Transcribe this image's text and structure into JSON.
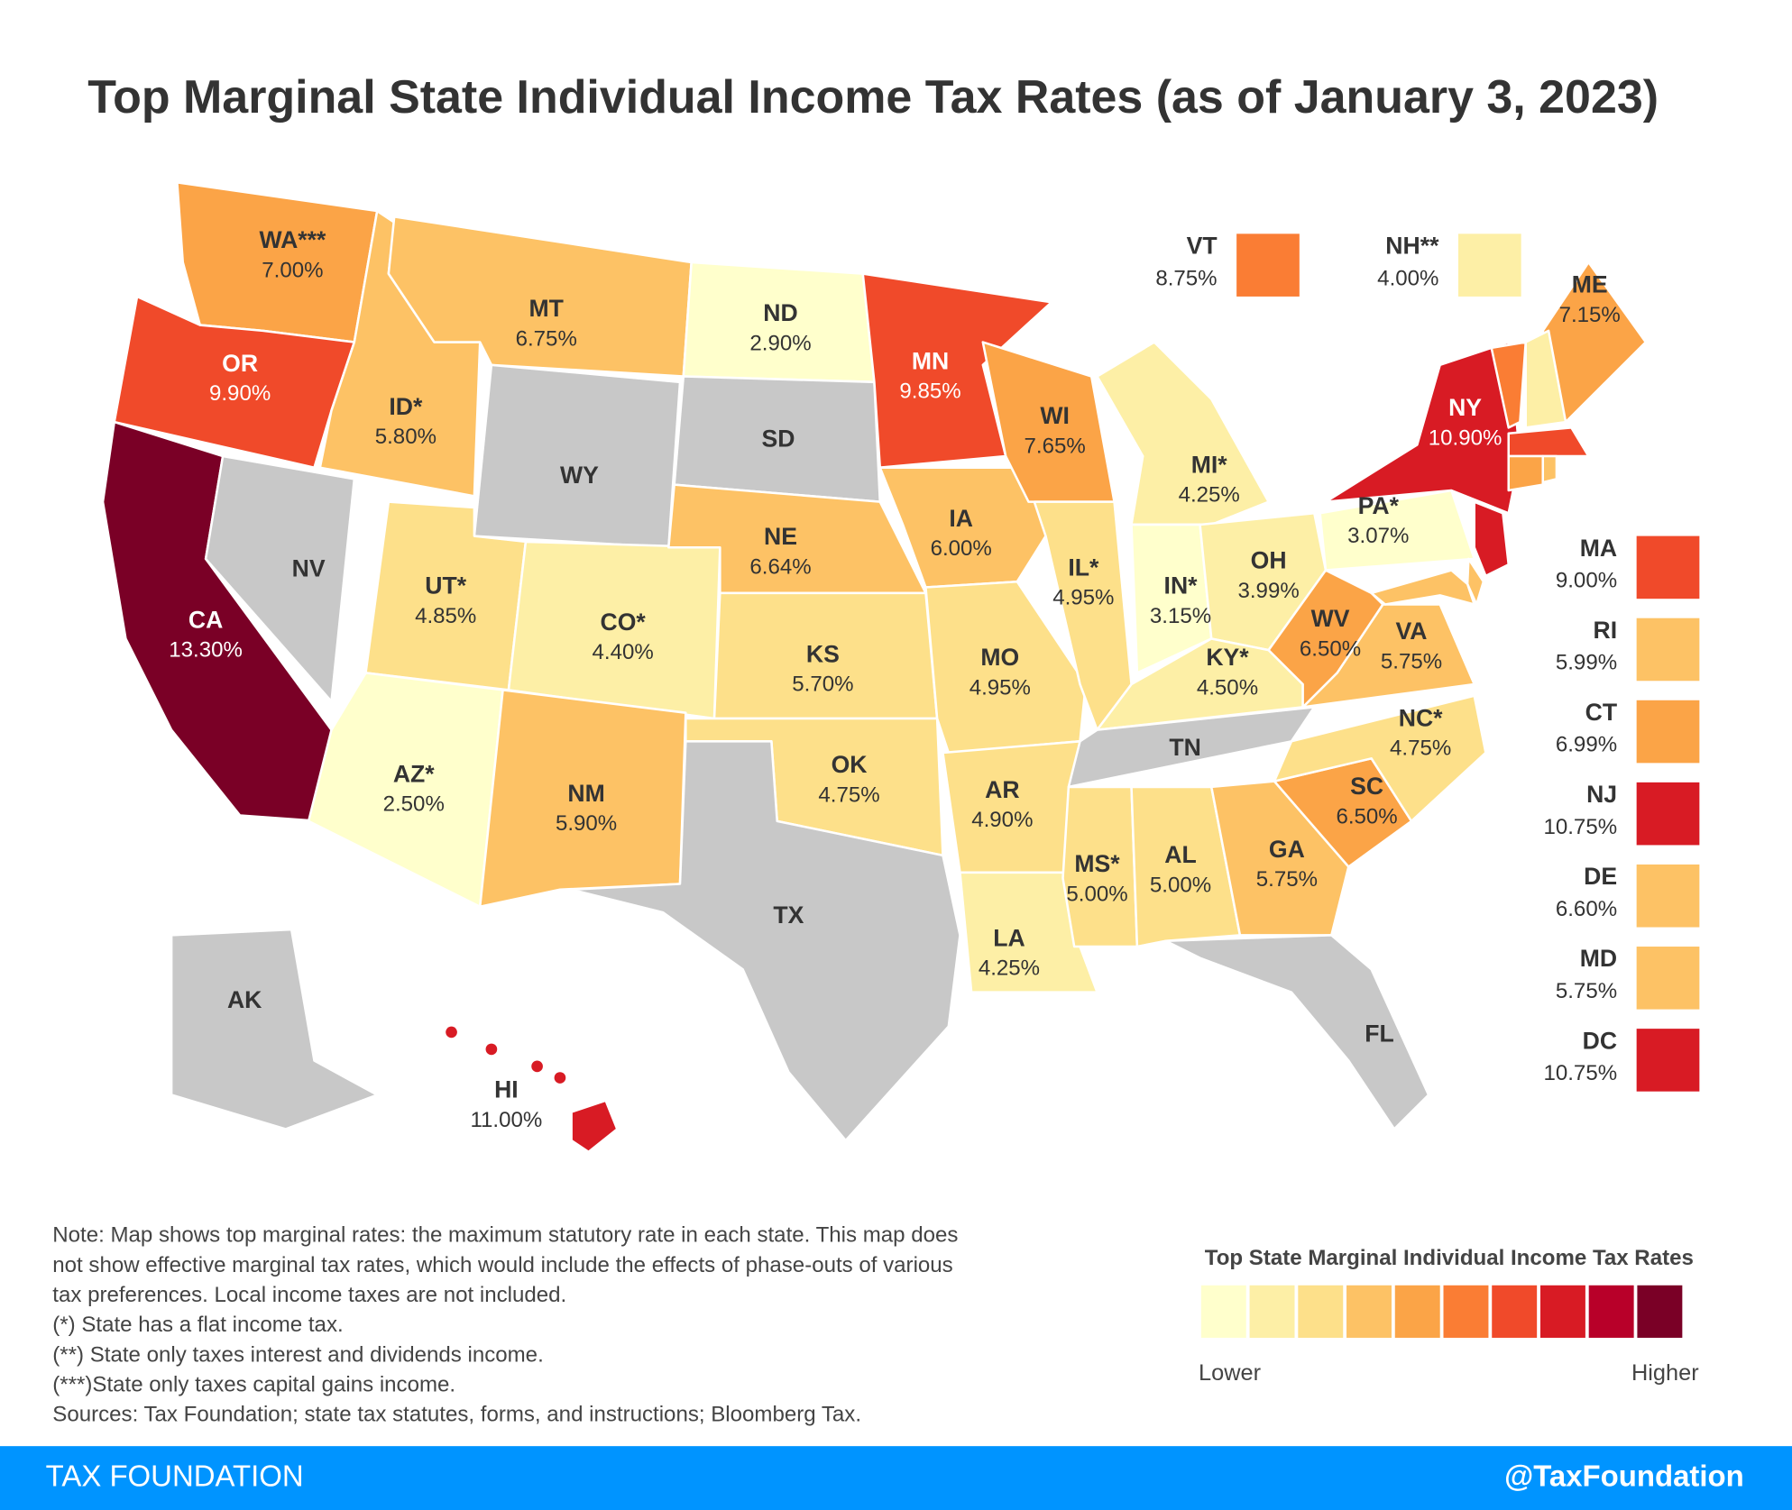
{
  "header": {
    "title": "Top Marginal State Individual Income Tax Rates (as of January 3, 2023)"
  },
  "no_tax_color": "#c8c8c8",
  "states": [
    {
      "label": "WA***",
      "rate": "7.00%",
      "color": "#fba447"
    },
    {
      "label": "OR",
      "rate": "9.90%",
      "color": "#f04a2a"
    },
    {
      "label": "CA",
      "rate": "13.30%",
      "color": "#7a0026"
    },
    {
      "label": "NV"
    },
    {
      "label": "ID*",
      "rate": "5.80%",
      "color": "#fdc265"
    },
    {
      "label": "MT",
      "rate": "6.75%",
      "color": "#fdc265"
    },
    {
      "label": "WY"
    },
    {
      "label": "UT*",
      "rate": "4.85%",
      "color": "#fde08a"
    },
    {
      "label": "CO*",
      "rate": "4.40%",
      "color": "#fdefa6"
    },
    {
      "label": "AZ*",
      "rate": "2.50%",
      "color": "#ffffcc"
    },
    {
      "label": "NM",
      "rate": "5.90%",
      "color": "#fdc265"
    },
    {
      "label": "ND",
      "rate": "2.90%",
      "color": "#ffffcc"
    },
    {
      "label": "SD"
    },
    {
      "label": "NE",
      "rate": "6.64%",
      "color": "#fdc265"
    },
    {
      "label": "KS",
      "rate": "5.70%",
      "color": "#fde08a"
    },
    {
      "label": "OK",
      "rate": "4.75%",
      "color": "#fde08a"
    },
    {
      "label": "TX"
    },
    {
      "label": "MN",
      "rate": "9.85%",
      "color": "#f04a2a"
    },
    {
      "label": "IA",
      "rate": "6.00%",
      "color": "#fdc265"
    },
    {
      "label": "MO",
      "rate": "4.95%",
      "color": "#fde08a"
    },
    {
      "label": "AR",
      "rate": "4.90%",
      "color": "#fde08a"
    },
    {
      "label": "LA",
      "rate": "4.25%",
      "color": "#fdefa6"
    },
    {
      "label": "WI",
      "rate": "7.65%",
      "color": "#fba447"
    },
    {
      "label": "IL*",
      "rate": "4.95%",
      "color": "#fde08a"
    },
    {
      "label": "MI*",
      "rate": "4.25%",
      "color": "#fdefa6"
    },
    {
      "label": "IN*",
      "rate": "3.15%",
      "color": "#ffffcc"
    },
    {
      "label": "OH",
      "rate": "3.99%",
      "color": "#fdefa6"
    },
    {
      "label": "KY*",
      "rate": "4.50%",
      "color": "#fdefa6"
    },
    {
      "label": "TN"
    },
    {
      "label": "MS*",
      "rate": "5.00%",
      "color": "#fde08a"
    },
    {
      "label": "AL",
      "rate": "5.00%",
      "color": "#fde08a"
    },
    {
      "label": "GA",
      "rate": "5.75%",
      "color": "#fdc265"
    },
    {
      "label": "FL"
    },
    {
      "label": "SC",
      "rate": "6.50%",
      "color": "#fba447"
    },
    {
      "label": "NC*",
      "rate": "4.75%",
      "color": "#fde08a"
    },
    {
      "label": "VA",
      "rate": "5.75%",
      "color": "#fdc265"
    },
    {
      "label": "WV",
      "rate": "6.50%",
      "color": "#fba447"
    },
    {
      "label": "PA*",
      "rate": "3.07%",
      "color": "#ffffcc"
    },
    {
      "label": "NY",
      "rate": "10.90%",
      "color": "#d81b24"
    },
    {
      "label": "ME",
      "rate": "7.15%",
      "color": "#fba447"
    },
    {
      "label": "AK"
    },
    {
      "label": "HI",
      "rate": "11.00%",
      "color": "#d81b24"
    },
    {
      "label": "VT",
      "rate": "8.75%",
      "color": "#fa7d34"
    },
    {
      "label": "NH**",
      "rate": "4.00%",
      "color": "#fdefa6"
    },
    {
      "label": "MA",
      "rate": "9.00%",
      "color": "#f04a2a"
    },
    {
      "label": "RI",
      "rate": "5.99%",
      "color": "#fdc265"
    },
    {
      "label": "CT",
      "rate": "6.99%",
      "color": "#fba447"
    },
    {
      "label": "NJ",
      "rate": "10.75%",
      "color": "#d81b24"
    },
    {
      "label": "DE",
      "rate": "6.60%",
      "color": "#fdc265"
    },
    {
      "label": "MD",
      "rate": "5.75%",
      "color": "#fdc265"
    },
    {
      "label": "DC",
      "rate": "10.75%",
      "color": "#d81b24"
    }
  ],
  "legend": {
    "title": "Top State Marginal Individual Income Tax Rates",
    "colors": [
      "#ffffcc",
      "#fdefa6",
      "#fde08a",
      "#fdc265",
      "#fba447",
      "#fa7d34",
      "#f04a2a",
      "#d81b24",
      "#b80029",
      "#7a0026"
    ],
    "low": "Lower",
    "high": "Higher"
  },
  "notes": [
    "Note: Map shows top marginal rates: the maximum statutory rate in each state. This map does",
    "not show effective marginal tax rates, which would include the effects of phase-outs of various",
    "tax preferences. Local income taxes are not included.",
    "(*) State has a flat income tax.",
    "(**) State only taxes interest and dividends income.",
    "(***)State only taxes capital gains income.",
    "Sources: Tax Foundation; state tax statutes, forms, and instructions; Bloomberg Tax."
  ],
  "footer": {
    "brand": "TAX FOUNDATION",
    "handle": "@TaxFoundation"
  }
}
